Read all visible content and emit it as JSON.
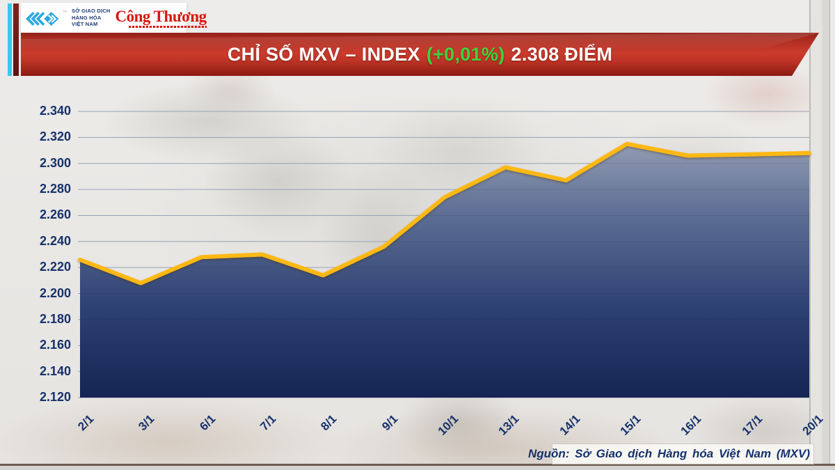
{
  "header": {
    "mxv_logo": {
      "trademark": "™",
      "line1": "SỞ GIAO DỊCH",
      "line2": "HÀNG HÓA",
      "line3": "VIỆT NAM",
      "brand_color": "#29a8e0"
    },
    "congthuong_logo": {
      "text": "Công Thương",
      "brand_color": "#d6170f"
    }
  },
  "banner": {
    "title_main": "CHỈ SỐ MXV – INDEX",
    "title_change": "(+0,01%)",
    "title_value": "2.308 ĐIỂM",
    "background_color": "#c23527",
    "change_color": "#3bd43b"
  },
  "chart_data": {
    "type": "area",
    "title": "CHỈ SỐ MXV – INDEX (+0,01%) 2.308 ĐIỂM",
    "categories": [
      "2/1",
      "3/1",
      "6/1",
      "7/1",
      "8/1",
      "9/1",
      "10/1",
      "13/1",
      "14/1",
      "15/1",
      "16/1",
      "17/1",
      "20/1"
    ],
    "values": [
      2226,
      2208,
      2228,
      2230,
      2214,
      2236,
      2274,
      2297,
      2287,
      2315,
      2306,
      2307,
      2308
    ],
    "y_ticks": [
      "2.340",
      "2.320",
      "2.300",
      "2.280",
      "2.260",
      "2.240",
      "2.220",
      "2.200",
      "2.180",
      "2.160",
      "2.140",
      "2.120"
    ],
    "ylim": [
      2120,
      2340
    ],
    "grid": true,
    "legend": "none",
    "line_color": "#fdb813",
    "fill_gradient_top": "#98a1b6",
    "fill_gradient_bottom": "#152553",
    "axis_label_color": "#16316b"
  },
  "footer": {
    "source": "Nguồn: Sở Giao dịch Hàng hóa Việt Nam (MXV)"
  }
}
